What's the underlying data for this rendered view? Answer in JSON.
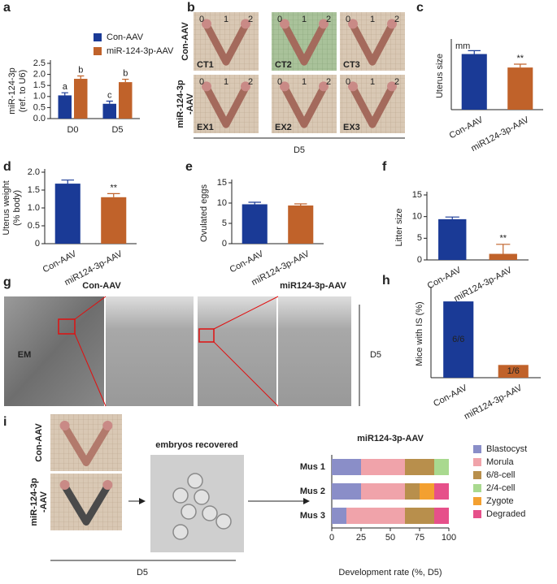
{
  "chart_data": [
    {
      "panel": "a",
      "type": "bar",
      "ylabel": [
        "miR-124-3p",
        "(ref. to U6)"
      ],
      "categories": [
        "D0",
        "D5"
      ],
      "series": [
        {
          "name": "Con-AAV",
          "color": "#1a3a96",
          "values": [
            1.05,
            0.67
          ],
          "errors": [
            0.12,
            0.12
          ],
          "annotations": [
            "a",
            "c"
          ]
        },
        {
          "name": "miR-124-3p-AAV",
          "color": "#c0622a",
          "values": [
            1.8,
            1.65
          ],
          "errors": [
            0.13,
            0.13
          ],
          "annotations": [
            "b",
            "b"
          ]
        }
      ],
      "ylim": [
        0,
        2.5
      ],
      "yticks": [
        {
          "value": 0,
          "label": "0.0"
        },
        {
          "value": 0.5,
          "label": "0.5"
        },
        {
          "value": 1,
          "label": "1.0"
        },
        {
          "value": 1.5,
          "label": "1.5"
        },
        {
          "value": 2,
          "label": "2.0"
        },
        {
          "value": 2.5,
          "label": "2.5"
        }
      ]
    },
    {
      "panel": "c",
      "type": "bar",
      "ylabel": [
        "Uterus size"
      ],
      "unit": "mm",
      "categories": [
        "Con-AAV",
        "miR124-3p-AAV"
      ],
      "values": [
        66,
        50
      ],
      "errors": [
        4,
        4
      ],
      "colors": [
        "#1a3a96",
        "#c0622a"
      ],
      "annotations": [
        null,
        "**"
      ],
      "ylim": [
        0,
        80
      ]
    },
    {
      "panel": "d",
      "type": "bar",
      "ylabel": [
        "Uterus weight",
        "(% body)"
      ],
      "categories": [
        "Con-AAV",
        "miR124-3p-AAV"
      ],
      "values": [
        1.68,
        1.3
      ],
      "errors": [
        0.1,
        0.1
      ],
      "colors": [
        "#1a3a96",
        "#c0622a"
      ],
      "annotations": [
        null,
        "**"
      ],
      "ylim": [
        0,
        2
      ],
      "yticks": [
        0,
        0.5,
        {
          "value": 1,
          "label": "1.0"
        },
        1.5,
        {
          "value": 2,
          "label": "2.0"
        }
      ]
    },
    {
      "panel": "e",
      "type": "bar",
      "ylabel": [
        "Ovulated eggs"
      ],
      "categories": [
        "Con-AAV",
        "miR124-3p-AAV"
      ],
      "values": [
        9.7,
        9.4
      ],
      "errors": [
        0.5,
        0.4
      ],
      "colors": [
        "#1a3a96",
        "#c0622a"
      ],
      "ylim": [
        0,
        15
      ],
      "yticks": [
        0,
        5,
        10,
        15
      ]
    },
    {
      "panel": "f",
      "type": "bar",
      "ylabel": [
        "Litter size"
      ],
      "categories": [
        "Con-AAV",
        "miR124-3p-AAV"
      ],
      "values": [
        9.4,
        1.4
      ],
      "errors": [
        0.5,
        2.2
      ],
      "colors": [
        "#1a3a96",
        "#c0622a"
      ],
      "annotations": [
        null,
        "**"
      ],
      "ylim": [
        0,
        15
      ],
      "yticks": [
        0,
        5,
        10,
        15
      ]
    },
    {
      "panel": "h",
      "type": "bar",
      "ylabel": [
        "Mice with IS  (%)"
      ],
      "categories": [
        "Con-AAV",
        "miR124-3p-AAV"
      ],
      "values": [
        100,
        16.7
      ],
      "value_labels": [
        "6/6",
        "1/6"
      ],
      "colors": [
        "#1a3a96",
        "#c0622a"
      ],
      "ylim": [
        0,
        115
      ]
    },
    {
      "type": "hbar",
      "stacked": true,
      "title": "miR124-3p-AAV",
      "xlabel": "Development rate (%, D5)",
      "categories": [
        "Mus 1",
        "Mus 2",
        "Mus 3"
      ],
      "series": [
        {
          "name": "Blastocyst",
          "color": "#8a8ec8",
          "values": [
            25,
            25,
            12.5
          ]
        },
        {
          "name": "Morula",
          "color": "#f0a3aa",
          "values": [
            37.5,
            37.5,
            50
          ]
        },
        {
          "name": "6/8-cell",
          "color": "#b88f4c",
          "values": [
            25,
            12.5,
            25
          ]
        },
        {
          "name": "2/4-cell",
          "color": "#a9d98f",
          "values": [
            12.5,
            0,
            0
          ]
        },
        {
          "name": "Zygote",
          "color": "#f3a030",
          "values": [
            0,
            12.5,
            0
          ]
        },
        {
          "name": "Degraded",
          "color": "#e6508a",
          "values": [
            0,
            12.5,
            12.5
          ]
        }
      ],
      "xlim": [
        0,
        100
      ],
      "xticks": [
        0,
        25,
        50,
        75,
        100
      ]
    }
  ],
  "panel_b": {
    "panel": "b",
    "rows": [
      "Con-AAV",
      [
        "miR-124-3p",
        "-AAV"
      ]
    ],
    "samples": [
      [
        "CT1",
        "CT2",
        "CT3"
      ],
      [
        "EX1",
        "EX2",
        "EX3"
      ]
    ],
    "ruler": [
      "0",
      "1",
      "2"
    ],
    "label": "D5"
  },
  "panel_g": {
    "panel": "g",
    "groups": [
      "Con-AAV",
      "miR124-3p-AAV"
    ],
    "method": "EM",
    "label": "D5"
  },
  "panel_i": {
    "panel": "i",
    "rows": [
      "Con-AAV",
      [
        "miR-124-3p",
        "-AAV"
      ]
    ],
    "caption": "embryos recovered",
    "label": "D5"
  }
}
